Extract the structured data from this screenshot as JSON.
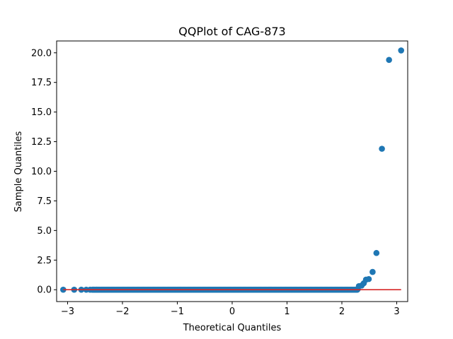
{
  "chart_data": {
    "type": "scatter",
    "title": "QQPlot of CAG-873",
    "xlabel": "Theoretical Quantiles",
    "ylabel": "Sample Quantiles",
    "xlim": [
      -3.2,
      3.2
    ],
    "ylim": [
      -1.0,
      21.0
    ],
    "xticks": [
      -3,
      -2,
      -1,
      0,
      1,
      2,
      3
    ],
    "xtick_labels": [
      "−3",
      "−2",
      "−1",
      "0",
      "1",
      "2",
      "3"
    ],
    "yticks": [
      0,
      2.5,
      5,
      7.5,
      10,
      12.5,
      15,
      17.5,
      20
    ],
    "ytick_labels": [
      "0.0",
      "2.5",
      "5.0",
      "7.5",
      "10.0",
      "12.5",
      "15.0",
      "17.5",
      "20.0"
    ],
    "grid": false,
    "marker_color": "#1f77b4",
    "line_color": "#d62728",
    "reference_line": {
      "x": [
        -3.08,
        3.08
      ],
      "y": [
        0,
        0
      ]
    },
    "dense_band": {
      "x_start": -2.55,
      "x_end": 2.28,
      "y": 0.0
    },
    "points": [
      {
        "x": -3.08,
        "y": 0.0
      },
      {
        "x": -2.88,
        "y": 0.0
      },
      {
        "x": -2.75,
        "y": 0.0
      },
      {
        "x": -2.66,
        "y": 0.0
      },
      {
        "x": -2.59,
        "y": 0.0
      },
      {
        "x": -2.53,
        "y": 0.0
      },
      {
        "x": -2.47,
        "y": 0.0
      },
      {
        "x": 2.29,
        "y": 0.05
      },
      {
        "x": 2.31,
        "y": 0.3
      },
      {
        "x": 2.36,
        "y": 0.35
      },
      {
        "x": 2.4,
        "y": 0.55
      },
      {
        "x": 2.44,
        "y": 0.85
      },
      {
        "x": 2.49,
        "y": 0.9
      },
      {
        "x": 2.56,
        "y": 1.5
      },
      {
        "x": 2.63,
        "y": 3.1
      },
      {
        "x": 2.73,
        "y": 11.9
      },
      {
        "x": 2.86,
        "y": 19.4
      },
      {
        "x": 3.08,
        "y": 20.2
      }
    ]
  }
}
